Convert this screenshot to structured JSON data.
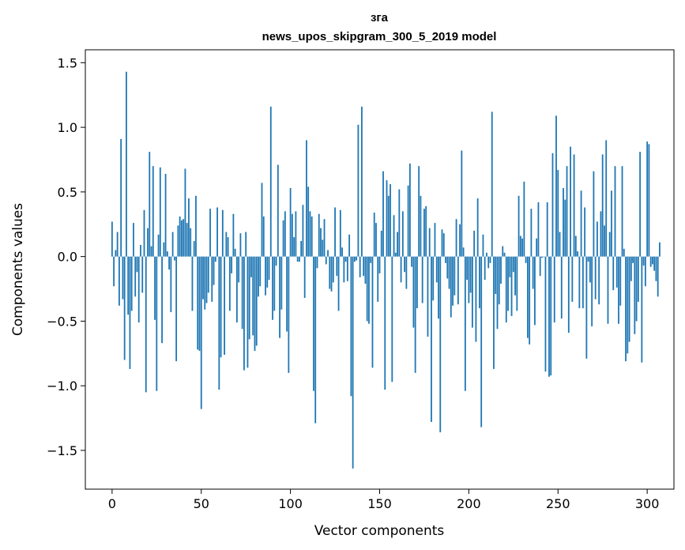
{
  "chart_data": {
    "type": "bar",
    "title": "зга",
    "subtitle": "news_upos_skipgram_300_5_2019 model",
    "xlabel": "Vector components",
    "ylabel": "Components values",
    "xlim": [
      -15,
      315
    ],
    "ylim": [
      -1.8,
      1.6
    ],
    "xticks": [
      0,
      50,
      100,
      150,
      200,
      250,
      300
    ],
    "xtick_labels": [
      "0",
      "50",
      "100",
      "150",
      "200",
      "250",
      "300"
    ],
    "yticks": [
      -1.5,
      -1.0,
      -0.5,
      0.0,
      0.5,
      1.0,
      1.5
    ],
    "ytick_labels": [
      "−1.5",
      "−1.0",
      "−0.5",
      "0.0",
      "0.5",
      "1.0",
      "1.5"
    ],
    "bar_color": "#1f77b4",
    "values": [
      0.27,
      -0.23,
      0.05,
      0.19,
      -0.38,
      0.91,
      -0.33,
      -0.8,
      1.43,
      -0.45,
      -0.87,
      -0.42,
      0.26,
      -0.31,
      -0.12,
      -0.51,
      0.09,
      -0.28,
      0.36,
      -1.05,
      0.22,
      0.81,
      0.08,
      0.7,
      -0.49,
      -1.04,
      0.17,
      0.69,
      -0.67,
      0.11,
      0.64,
      0.04,
      -0.1,
      -0.43,
      0.19,
      -0.03,
      -0.81,
      0.24,
      0.31,
      0.28,
      0.29,
      0.68,
      0.26,
      0.45,
      0.22,
      -0.42,
      0.12,
      0.47,
      -0.72,
      -0.73,
      -1.18,
      -0.33,
      -0.41,
      -0.36,
      -0.28,
      0.37,
      -0.35,
      -0.22,
      -0.04,
      0.38,
      -1.03,
      -0.78,
      0.36,
      -0.76,
      0.19,
      0.15,
      -0.42,
      -0.13,
      0.33,
      0.06,
      -0.51,
      -0.2,
      0.18,
      -0.56,
      -0.88,
      0.19,
      -0.86,
      -0.64,
      -0.16,
      -0.61,
      -0.73,
      -0.69,
      -0.31,
      -0.23,
      0.57,
      0.31,
      -0.3,
      -0.24,
      -0.18,
      1.16,
      -0.49,
      -0.42,
      -0.07,
      0.71,
      -0.63,
      -0.41,
      0.28,
      0.35,
      -0.58,
      -0.9,
      0.53,
      0.33,
      0.15,
      0.35,
      -0.04,
      -0.04,
      0.12,
      0.4,
      -0.32,
      0.9,
      0.54,
      0.35,
      0.31,
      -1.04,
      -1.29,
      -0.09,
      0.33,
      0.22,
      0.13,
      0.29,
      -0.06,
      0.05,
      -0.25,
      -0.27,
      -0.2,
      0.38,
      -0.15,
      -0.42,
      0.36,
      0.07,
      -0.2,
      -0.04,
      -0.19,
      0.17,
      -1.08,
      -1.64,
      -0.04,
      -0.03,
      1.02,
      -0.16,
      1.16,
      -0.15,
      -0.21,
      -0.5,
      -0.52,
      -0.05,
      -0.86,
      0.34,
      0.26,
      -0.35,
      -0.13,
      0.2,
      0.66,
      -1.03,
      0.59,
      0.47,
      0.56,
      -0.97,
      0.32,
      0.03,
      0.19,
      0.52,
      -0.2,
      0.35,
      -0.12,
      -0.25,
      0.55,
      0.72,
      -0.08,
      -0.55,
      -0.9,
      -0.4,
      0.7,
      0.47,
      -0.36,
      0.37,
      0.39,
      -0.62,
      0.22,
      -1.28,
      -0.34,
      0.26,
      -0.2,
      -0.48,
      -1.36,
      0.21,
      0.18,
      -0.05,
      -0.17,
      -0.25,
      -0.47,
      -0.38,
      -0.3,
      0.29,
      -0.37,
      0.25,
      0.82,
      0.07,
      -1.04,
      -0.18,
      -0.36,
      -0.28,
      -0.55,
      0.2,
      -0.66,
      0.45,
      -0.4,
      -1.32,
      0.17,
      -0.18,
      0.03,
      -0.09,
      -0.05,
      1.12,
      -0.87,
      -0.29,
      -0.56,
      -0.37,
      -0.21,
      0.08,
      0.03,
      -0.51,
      -0.42,
      -0.16,
      -0.46,
      -0.12,
      -0.3,
      -0.42,
      0.47,
      0.16,
      0.14,
      0.58,
      -0.05,
      -0.63,
      -0.68,
      0.37,
      -0.25,
      -0.53,
      0.14,
      0.42,
      -0.15,
      -0.01,
      0.0,
      -0.89,
      0.42,
      -0.93,
      -0.92,
      0.8,
      -0.51,
      1.09,
      0.67,
      0.19,
      -0.48,
      0.53,
      0.44,
      0.7,
      -0.59,
      0.85,
      -0.35,
      0.79,
      0.16,
      0.04,
      -0.4,
      0.51,
      -0.4,
      0.38,
      -0.79,
      -0.04,
      -0.2,
      -0.54,
      0.66,
      -0.33,
      0.27,
      -0.37,
      0.35,
      0.79,
      0.24,
      0.9,
      -0.52,
      0.19,
      0.51,
      -0.26,
      0.7,
      -0.24,
      -0.52,
      -0.38,
      0.7,
      0.06,
      -0.81,
      -0.75,
      -0.66,
      -0.19,
      -0.05,
      -0.6,
      -0.5,
      -0.35,
      0.81,
      -0.82,
      -0.07,
      -0.23,
      0.89,
      0.87,
      -0.08,
      -0.06,
      -0.11,
      -0.19,
      -0.31,
      0.11
    ]
  }
}
